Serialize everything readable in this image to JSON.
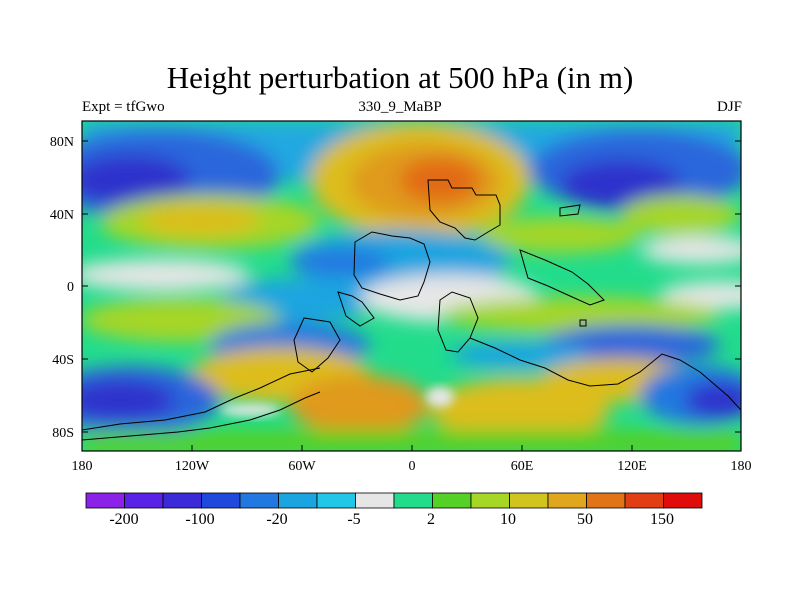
{
  "map": {
    "title": "Height perturbation at 500 hPa (in m)",
    "left_label": "Expt = tfGwo",
    "center_label": "330_9_MaBP",
    "right_label": "DJF",
    "lat_ticks": [
      "80N",
      "40N",
      "0",
      "40S",
      "80S"
    ],
    "lon_ticks": [
      "180",
      "120W",
      "60W",
      "0",
      "60E",
      "120E",
      "180"
    ]
  },
  "colorbar": {
    "colors": [
      "#8a22e8",
      "#5a22e6",
      "#3a2ad8",
      "#1f48dc",
      "#2078e0",
      "#1aa4e0",
      "#22c6e6",
      "#e6e6e6",
      "#22dc8c",
      "#55d026",
      "#a6d626",
      "#d2c41e",
      "#e0a61e",
      "#e27418",
      "#e23e14",
      "#e00c0c"
    ],
    "labels": [
      "-200",
      "-100",
      "-20",
      "-5",
      "2",
      "10",
      "50",
      "150"
    ]
  }
}
